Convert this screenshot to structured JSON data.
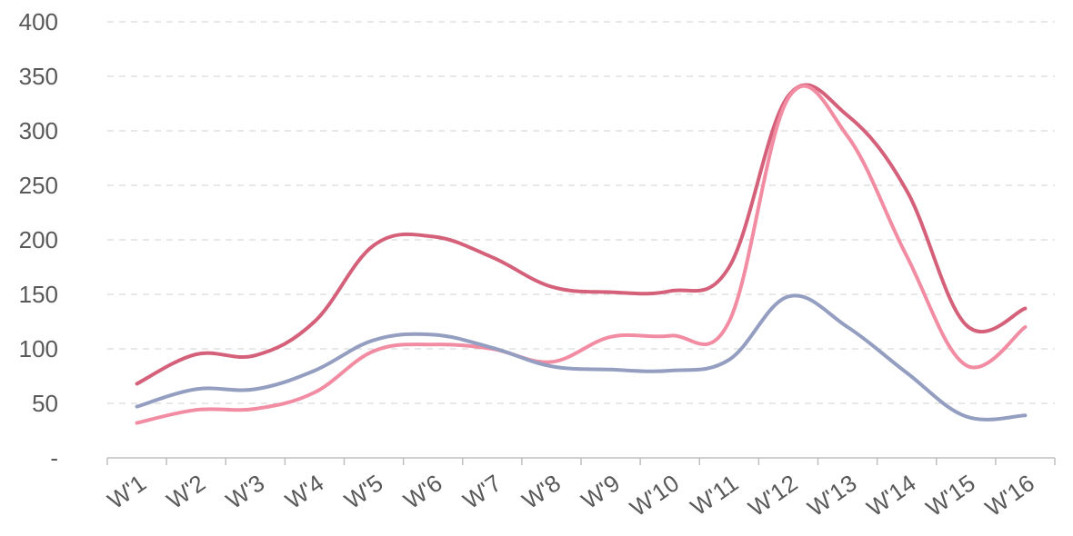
{
  "chart_data": {
    "type": "line",
    "title": "",
    "xlabel": "",
    "ylabel": "",
    "ylim": [
      0,
      400
    ],
    "yticks": [
      0,
      50,
      100,
      150,
      200,
      250,
      300,
      350,
      400
    ],
    "ytick_labels": [
      "-",
      "50",
      "100",
      "150",
      "200",
      "250",
      "300",
      "350",
      "400"
    ],
    "grid": true,
    "legend": "none",
    "smooth": true,
    "categories": [
      "W'1",
      "W'2",
      "W'3",
      "W'4",
      "W'5",
      "W'6",
      "W'7",
      "W'8",
      "W'9",
      "W'10",
      "W'11",
      "W'12",
      "W'13",
      "W'14",
      "W'15",
      "W'16"
    ],
    "series": [
      {
        "color": "#d4607a",
        "values": [
          68,
          95,
          94,
          125,
          195,
          203,
          184,
          157,
          152,
          153,
          175,
          332,
          314,
          245,
          122,
          137
        ]
      },
      {
        "color": "#f28ca3",
        "values": [
          32,
          44,
          45,
          60,
          98,
          104,
          100,
          88,
          111,
          112,
          125,
          330,
          295,
          185,
          85,
          120
        ]
      },
      {
        "color": "#949ec0",
        "values": [
          47,
          63,
          63,
          80,
          108,
          113,
          101,
          84,
          81,
          80,
          90,
          148,
          120,
          78,
          38,
          39
        ]
      }
    ]
  }
}
